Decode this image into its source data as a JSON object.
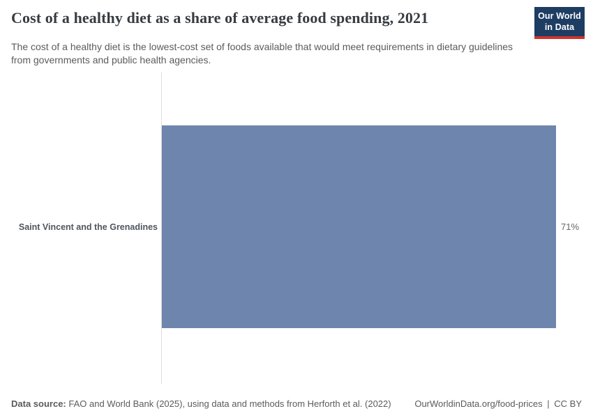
{
  "header": {
    "title": "Cost of a healthy diet as a share of average food spending, 2021",
    "subtitle": "The cost of a healthy diet is the lowest-cost set of foods available that would meet requirements in dietary guidelines from governments and public health agencies.",
    "logo": {
      "line1": "Our World",
      "line2": "in Data",
      "bg_color": "#1d3d63",
      "accent_color": "#d0342c"
    }
  },
  "chart_data": {
    "type": "bar",
    "orientation": "horizontal",
    "title": "Cost of a healthy diet as a share of average food spending, 2021",
    "categories": [
      "Saint Vincent and the Grenadines"
    ],
    "values": [
      71
    ],
    "unit": "%",
    "value_labels": [
      "71%"
    ],
    "xlim": [
      0,
      71
    ],
    "grid": false,
    "legend": "none",
    "axis_ticks_visible": false,
    "bar_color": "#6e85ad",
    "axis_line_color": "#dcdcdc"
  },
  "footer": {
    "source_label": "Data source:",
    "source_text": "FAO and World Bank (2025), using data and methods from Herforth et al. (2022)",
    "url": "OurWorldinData.org/food-prices",
    "separator": "|",
    "license": "CC BY"
  }
}
